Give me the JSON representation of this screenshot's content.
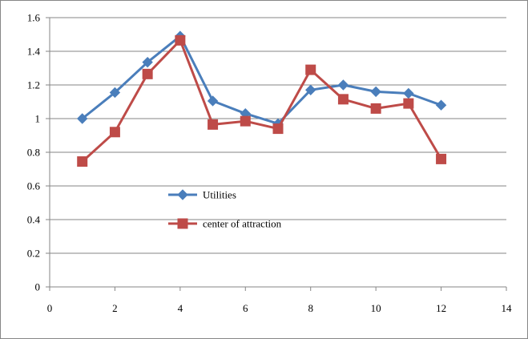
{
  "chart_data": {
    "type": "line",
    "title": "",
    "xlabel": "",
    "ylabel": "",
    "xlim": [
      0,
      14
    ],
    "ylim": [
      0,
      1.6
    ],
    "xticks": [
      "0",
      "2",
      "4",
      "6",
      "8",
      "10",
      "12",
      "14"
    ],
    "yticks": [
      "0",
      "0.2",
      "0.4",
      "0.6",
      "0.8",
      "1",
      "1.2",
      "1.4",
      "1.6"
    ],
    "grid": "horizontal",
    "legend_position": "center-left",
    "series": [
      {
        "name": "Utilities",
        "color": "#4A7EBB",
        "marker": "diamond",
        "x": [
          1,
          2,
          3,
          4,
          5,
          6,
          7,
          8,
          9,
          10,
          11,
          12
        ],
        "y": [
          1.0,
          1.155,
          1.335,
          1.49,
          1.105,
          1.03,
          0.97,
          1.17,
          1.2,
          1.16,
          1.15,
          1.08
        ]
      },
      {
        "name": "center of attraction",
        "color": "#BE4B48",
        "marker": "square",
        "x": [
          1,
          2,
          3,
          4,
          5,
          6,
          7,
          8,
          9,
          10,
          11,
          12
        ],
        "y": [
          0.745,
          0.92,
          1.265,
          1.465,
          0.965,
          0.985,
          0.94,
          1.29,
          1.115,
          1.06,
          1.09,
          0.76
        ]
      }
    ]
  }
}
